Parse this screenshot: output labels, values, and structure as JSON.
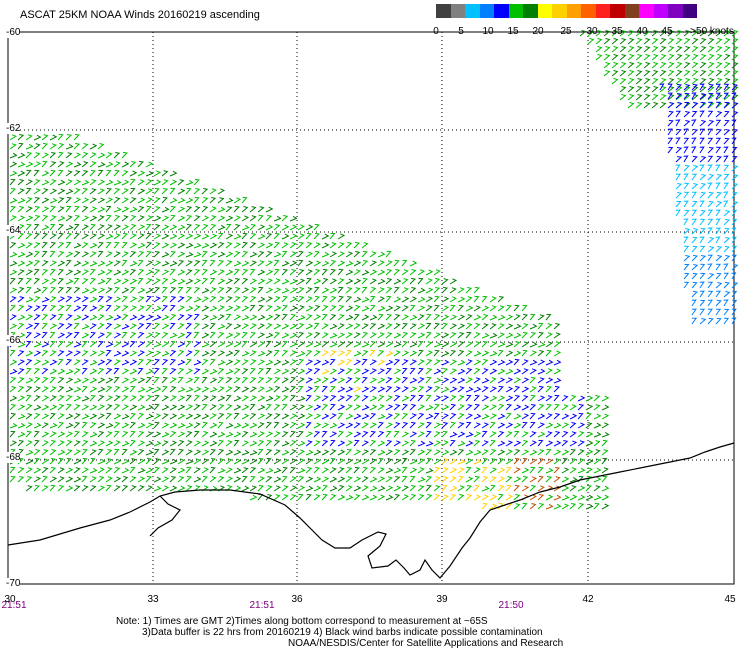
{
  "title": "ASCAT 25KM NOAA Winds 20160219 ascending",
  "colorbar": {
    "colors": [
      "#404040",
      "#808080",
      "#00c0ff",
      "#0080ff",
      "#0000ff",
      "#00c000",
      "#008000",
      "#ffff00",
      "#ffd000",
      "#ffa000",
      "#ff6000",
      "#ff2020",
      "#c00000",
      "#804020",
      "#ff00ff",
      "#c000ff",
      "#8000c0",
      "#400080"
    ],
    "labels": [
      "0",
      "5",
      "10",
      "15",
      "20",
      "25",
      "30",
      "35",
      "40",
      "45",
      ">50 knots"
    ]
  },
  "axes": {
    "lon_ticks": [
      "30",
      "33",
      "36",
      "39",
      "42",
      "45"
    ],
    "lat_ticks": [
      "-60",
      "-62",
      "-64",
      "-66",
      "-68",
      "-70"
    ],
    "time_labels": [
      "21:51",
      "21:51",
      "21:50"
    ]
  },
  "notes": {
    "line1": "Note: 1) Times are GMT 2)Times along bottom correspond to measurement at ~65S",
    "line2": "3)Data buffer is 22 hrs from 20160219 4) Black wind barbs indicate possible contamination",
    "line3": "NOAA/NESDIS/Center for Satellite Applications and Research"
  }
}
